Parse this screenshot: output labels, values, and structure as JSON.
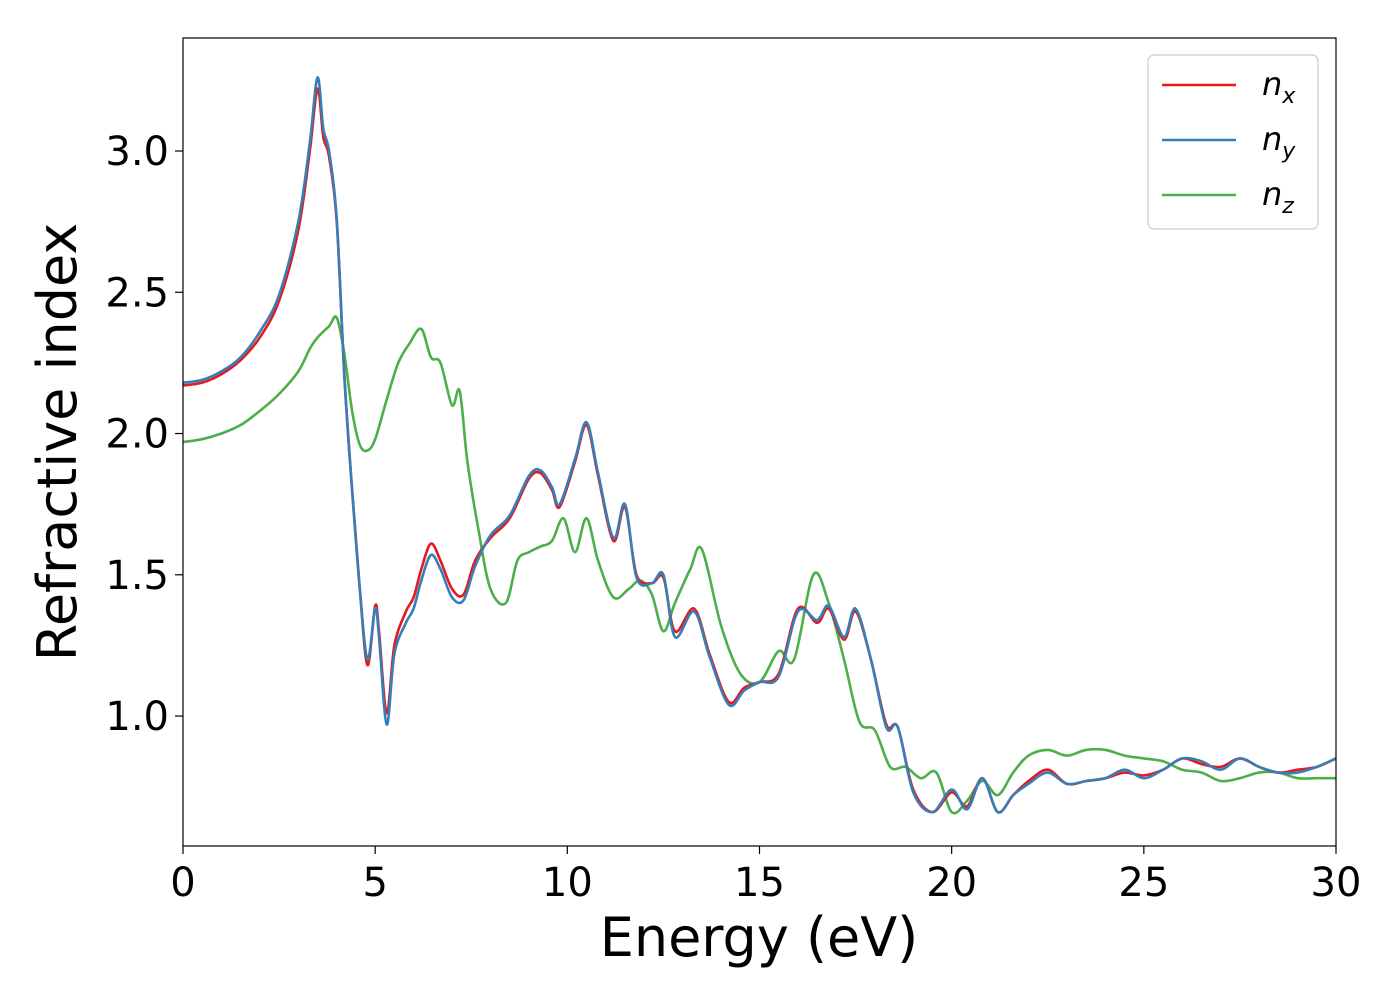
{
  "chart_data": {
    "type": "line",
    "title": "",
    "xlabel": "Energy (eV)",
    "ylabel": "Refractive index",
    "xlim": [
      0,
      30
    ],
    "ylim": [
      0.54,
      3.4
    ],
    "xticks": [
      0,
      5,
      10,
      15,
      20,
      25,
      30
    ],
    "yticks": [
      1.0,
      1.5,
      2.0,
      2.5,
      3.0
    ],
    "xtick_labels": [
      "0",
      "5",
      "10",
      "15",
      "20",
      "25",
      "30"
    ],
    "ytick_labels": [
      "1.0",
      "1.5",
      "2.0",
      "2.5",
      "3.0"
    ],
    "grid": false,
    "legend_position": "top-right",
    "series": [
      {
        "name": "n",
        "subscript": "x",
        "color": "#e41a1c",
        "x": [
          0,
          0.5,
          1,
          1.5,
          2,
          2.5,
          3,
          3.3,
          3.5,
          3.65,
          3.8,
          4.0,
          4.2,
          4.4,
          4.6,
          4.8,
          5.0,
          5.1,
          5.3,
          5.5,
          5.8,
          6.0,
          6.2,
          6.45,
          6.7,
          7.0,
          7.3,
          7.6,
          8.0,
          8.5,
          9.0,
          9.3,
          9.6,
          9.8,
          10.2,
          10.5,
          10.8,
          11.2,
          11.5,
          11.8,
          12.2,
          12.5,
          12.8,
          13.3,
          13.7,
          14.2,
          14.6,
          15.0,
          15.5,
          16.0,
          16.5,
          16.8,
          17.2,
          17.5,
          17.9,
          18.3,
          18.6,
          19.0,
          19.5,
          20.0,
          20.4,
          20.8,
          21.2,
          21.6,
          22.0,
          22.5,
          23.0,
          23.5,
          24.0,
          24.5,
          25.0,
          25.5,
          26.0,
          26.5,
          27.0,
          27.5,
          28.0,
          28.5,
          29.0,
          29.5,
          30.0
        ],
        "y": [
          2.17,
          2.18,
          2.21,
          2.26,
          2.34,
          2.47,
          2.72,
          3.0,
          3.22,
          3.05,
          2.98,
          2.75,
          2.2,
          1.8,
          1.45,
          1.18,
          1.39,
          1.3,
          1.01,
          1.25,
          1.37,
          1.42,
          1.52,
          1.61,
          1.55,
          1.45,
          1.43,
          1.55,
          1.63,
          1.7,
          1.84,
          1.86,
          1.8,
          1.74,
          1.9,
          2.03,
          1.85,
          1.62,
          1.74,
          1.5,
          1.47,
          1.49,
          1.3,
          1.38,
          1.22,
          1.05,
          1.1,
          1.12,
          1.15,
          1.38,
          1.33,
          1.38,
          1.27,
          1.37,
          1.2,
          0.97,
          0.96,
          0.74,
          0.66,
          0.73,
          0.68,
          0.78,
          0.66,
          0.72,
          0.77,
          0.81,
          0.76,
          0.77,
          0.78,
          0.8,
          0.79,
          0.81,
          0.85,
          0.83,
          0.82,
          0.85,
          0.82,
          0.8,
          0.81,
          0.82,
          0.85
        ]
      },
      {
        "name": "n",
        "subscript": "y",
        "color": "#377eb8",
        "x": [
          0,
          0.5,
          1,
          1.5,
          2,
          2.5,
          3,
          3.3,
          3.5,
          3.65,
          3.8,
          4.0,
          4.2,
          4.4,
          4.6,
          4.8,
          5.0,
          5.1,
          5.3,
          5.5,
          5.8,
          6.0,
          6.2,
          6.45,
          6.7,
          7.0,
          7.3,
          7.6,
          8.0,
          8.5,
          9.0,
          9.3,
          9.6,
          9.8,
          10.2,
          10.5,
          10.8,
          11.2,
          11.5,
          11.8,
          12.2,
          12.5,
          12.8,
          13.3,
          13.7,
          14.2,
          14.6,
          15.0,
          15.5,
          16.0,
          16.5,
          16.8,
          17.2,
          17.5,
          17.9,
          18.3,
          18.6,
          19.0,
          19.5,
          20.0,
          20.4,
          20.8,
          21.2,
          21.6,
          22.0,
          22.5,
          23.0,
          23.5,
          24.0,
          24.5,
          25.0,
          25.5,
          26.0,
          26.5,
          27.0,
          27.5,
          28.0,
          28.5,
          29.0,
          29.5,
          30.0
        ],
        "y": [
          2.18,
          2.19,
          2.22,
          2.27,
          2.36,
          2.49,
          2.75,
          3.03,
          3.26,
          3.08,
          3.0,
          2.76,
          2.2,
          1.8,
          1.45,
          1.2,
          1.38,
          1.28,
          0.97,
          1.22,
          1.33,
          1.38,
          1.48,
          1.57,
          1.52,
          1.42,
          1.41,
          1.53,
          1.64,
          1.71,
          1.85,
          1.87,
          1.81,
          1.75,
          1.91,
          2.04,
          1.86,
          1.63,
          1.75,
          1.49,
          1.47,
          1.5,
          1.28,
          1.37,
          1.21,
          1.04,
          1.09,
          1.12,
          1.14,
          1.37,
          1.34,
          1.39,
          1.28,
          1.38,
          1.2,
          0.96,
          0.96,
          0.73,
          0.66,
          0.74,
          0.67,
          0.78,
          0.66,
          0.72,
          0.76,
          0.8,
          0.76,
          0.77,
          0.78,
          0.81,
          0.78,
          0.81,
          0.85,
          0.84,
          0.81,
          0.85,
          0.82,
          0.8,
          0.8,
          0.82,
          0.85
        ]
      },
      {
        "name": "n",
        "subscript": "z",
        "color": "#4daf4a",
        "x": [
          0,
          0.5,
          1,
          1.5,
          2,
          2.5,
          3,
          3.3,
          3.5,
          3.8,
          4.0,
          4.2,
          4.4,
          4.6,
          4.8,
          5.0,
          5.3,
          5.6,
          5.9,
          6.2,
          6.45,
          6.7,
          7.0,
          7.2,
          7.4,
          7.7,
          8.0,
          8.4,
          8.7,
          9.0,
          9.3,
          9.6,
          9.9,
          10.2,
          10.5,
          10.8,
          11.2,
          11.6,
          11.9,
          12.2,
          12.5,
          12.8,
          13.2,
          13.5,
          14.0,
          14.5,
          15.0,
          15.5,
          15.9,
          16.4,
          16.8,
          17.2,
          17.6,
          18.0,
          18.4,
          18.8,
          19.2,
          19.6,
          20.0,
          20.4,
          20.8,
          21.2,
          21.6,
          22.0,
          22.5,
          23.0,
          23.5,
          24.0,
          24.5,
          25.0,
          25.5,
          26.0,
          26.5,
          27.0,
          27.5,
          28.0,
          28.5,
          29.0,
          29.5,
          30.0
        ],
        "y": [
          1.97,
          1.98,
          2.0,
          2.03,
          2.08,
          2.14,
          2.22,
          2.3,
          2.34,
          2.38,
          2.41,
          2.28,
          2.08,
          1.96,
          1.94,
          1.98,
          2.12,
          2.25,
          2.32,
          2.37,
          2.27,
          2.25,
          2.1,
          2.15,
          1.9,
          1.65,
          1.45,
          1.4,
          1.55,
          1.58,
          1.6,
          1.62,
          1.7,
          1.58,
          1.7,
          1.55,
          1.42,
          1.45,
          1.48,
          1.43,
          1.3,
          1.4,
          1.52,
          1.59,
          1.32,
          1.15,
          1.12,
          1.23,
          1.2,
          1.5,
          1.4,
          1.2,
          0.98,
          0.95,
          0.82,
          0.82,
          0.78,
          0.8,
          0.66,
          0.7,
          0.77,
          0.72,
          0.8,
          0.86,
          0.88,
          0.86,
          0.88,
          0.88,
          0.86,
          0.85,
          0.84,
          0.81,
          0.8,
          0.77,
          0.78,
          0.8,
          0.8,
          0.78,
          0.78,
          0.78
        ]
      }
    ]
  }
}
